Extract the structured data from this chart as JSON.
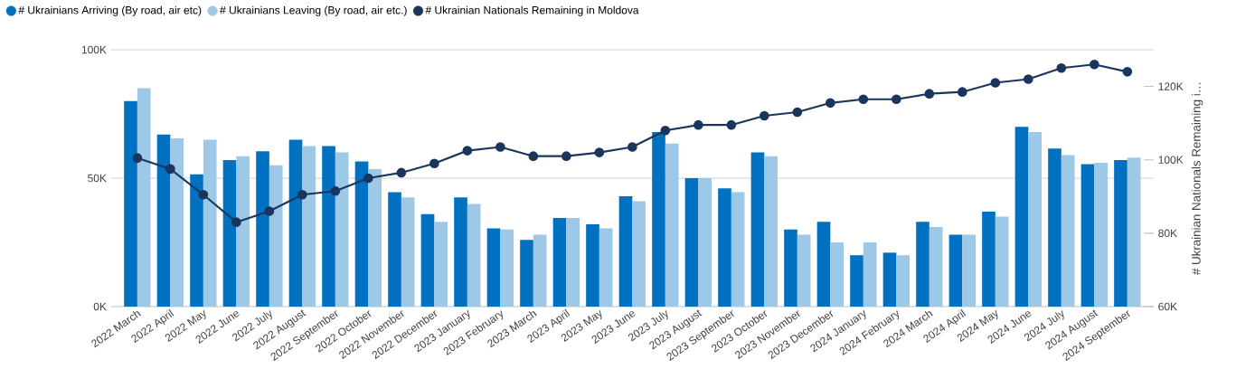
{
  "chart_data": {
    "type": "bar",
    "categories": [
      "2022 March",
      "2022 April",
      "2022 May",
      "2022 June",
      "2022 July",
      "2022 August",
      "2022 September",
      "2022 October",
      "2022 November",
      "2022 December",
      "2023 January",
      "2023 February",
      "2023 March",
      "2023 April",
      "2023 May",
      "2023 June",
      "2023 July",
      "2023 August",
      "2023 September",
      "2023 October",
      "2023 November",
      "2023 December",
      "2024 January",
      "2024 February",
      "2024 March",
      "2024 April",
      "2024 May",
      "2024 June",
      "2024 July",
      "2024 August",
      "2024 September"
    ],
    "series": [
      {
        "name": "# Ukrainians Arriving (By road, air etc)",
        "color": "#0070c0",
        "values": [
          80000,
          67000,
          51500,
          57000,
          60500,
          65000,
          62500,
          56500,
          44500,
          36000,
          42500,
          30500,
          26000,
          34500,
          32000,
          43000,
          68000,
          50000,
          46000,
          60000,
          30000,
          33000,
          20000,
          21000,
          33000,
          28000,
          37000,
          70000,
          61500,
          55500,
          57000
        ]
      },
      {
        "name": "# Ukrainians Leaving (By road, air etc.)",
        "color": "#9dc8e6",
        "values": [
          85000,
          65500,
          65000,
          58500,
          55000,
          62500,
          60000,
          53500,
          42500,
          33000,
          40000,
          30000,
          28000,
          34500,
          30500,
          41000,
          63500,
          50000,
          44500,
          58500,
          28000,
          25000,
          25000,
          20000,
          31000,
          28000,
          35000,
          68000,
          59000,
          56000,
          58000
        ]
      },
      {
        "name": "# Ukrainian Nationals Remaining in Moldova",
        "color": "#1b365d",
        "type": "line",
        "axis": "y2",
        "marker": "circle",
        "values": [
          100500,
          97500,
          90500,
          83000,
          86000,
          90500,
          91500,
          95000,
          96500,
          99000,
          102500,
          103500,
          101000,
          101000,
          102000,
          103500,
          108000,
          109500,
          109500,
          112000,
          113000,
          115500,
          116500,
          116500,
          118000,
          118500,
          121000,
          122000,
          125000,
          126000,
          124000
        ]
      }
    ],
    "ylim": [
      0,
      100000
    ],
    "yticks": [
      {
        "value": 0,
        "label": "0K"
      },
      {
        "value": 50000,
        "label": "50K"
      },
      {
        "value": 100000,
        "label": "100K"
      }
    ],
    "y2lim": [
      60000,
      130000
    ],
    "y2ticks": [
      {
        "value": 60000,
        "label": "60K"
      },
      {
        "value": 80000,
        "label": "80K"
      },
      {
        "value": 100000,
        "label": "100K"
      },
      {
        "value": 120000,
        "label": "120K"
      }
    ],
    "y2label": "# Ukrainian Nationals Remaining i…",
    "grid": "y",
    "legend": "top left"
  }
}
